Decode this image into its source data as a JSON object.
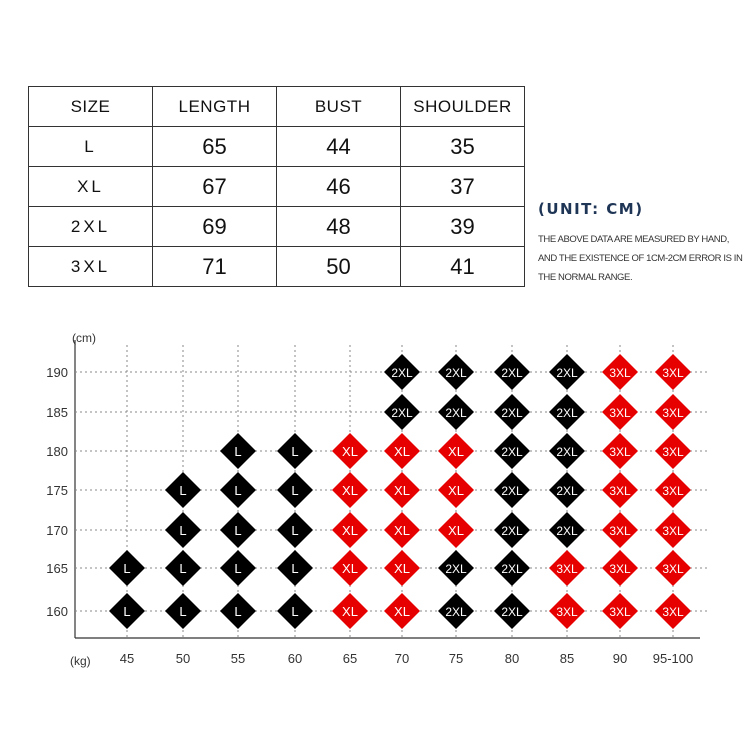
{
  "size_table": {
    "headers": [
      "SIZE",
      "LENGTH",
      "BUST",
      "SHOULDER"
    ],
    "rows": [
      [
        "L",
        "65",
        "44",
        "35"
      ],
      [
        "XL",
        "67",
        "46",
        "37"
      ],
      [
        "2XL",
        "69",
        "48",
        "39"
      ],
      [
        "3XL",
        "71",
        "50",
        "41"
      ]
    ]
  },
  "unit_label": "(UNIT:  CM)",
  "note": "THE ABOVE DATA ARE MEASURED BY HAND, AND THE EXISTENCE OF 1CM-2CM ERROR IS IN THE NORMAL RANGE.",
  "chart_data": {
    "type": "table",
    "xlabel": "(kg)",
    "ylabel": "(cm)",
    "x_categories": [
      "45",
      "50",
      "55",
      "60",
      "65",
      "70",
      "75",
      "80",
      "85",
      "90",
      "95-100"
    ],
    "y_categories": [
      "190",
      "185",
      "180",
      "175",
      "170",
      "165",
      "160"
    ],
    "grid": "dotted",
    "size_colors": {
      "L": "#000000",
      "XL": "#e60000",
      "2XL": "#000000",
      "3XL": "#e60000"
    },
    "cells": [
      [
        null,
        null,
        null,
        null,
        null,
        "2XL",
        "2XL",
        "2XL",
        "2XL",
        "3XL",
        "3XL"
      ],
      [
        null,
        null,
        null,
        null,
        null,
        "2XL",
        "2XL",
        "2XL",
        "2XL",
        "3XL",
        "3XL"
      ],
      [
        null,
        null,
        "L",
        "L",
        "XL",
        "XL",
        "XL",
        "2XL",
        "2XL",
        "3XL",
        "3XL"
      ],
      [
        null,
        "L",
        "L",
        "L",
        "XL",
        "XL",
        "XL",
        "2XL",
        "2XL",
        "3XL",
        "3XL"
      ],
      [
        null,
        "L",
        "L",
        "L",
        "XL",
        "XL",
        "XL",
        "2XL",
        "2XL",
        "3XL",
        "3XL"
      ],
      [
        "L",
        "L",
        "L",
        "L",
        "XL",
        "XL",
        "2XL",
        "2XL",
        "3XL",
        "3XL",
        "3XL"
      ],
      [
        "L",
        "L",
        "L",
        "L",
        "XL",
        "XL",
        "2XL",
        "2XL",
        "3XL",
        "3XL",
        "3XL"
      ]
    ]
  }
}
